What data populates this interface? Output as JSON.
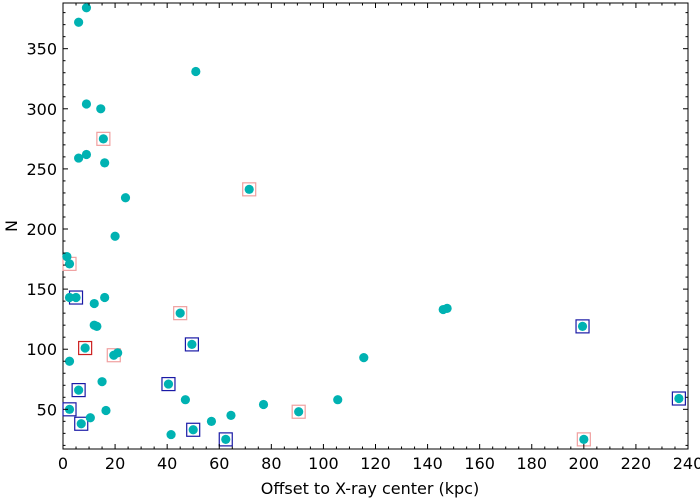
{
  "chart_data": {
    "type": "scatter",
    "title": "",
    "xlabel": "Offset to X-ray center (kpc)",
    "ylabel": "N",
    "xlim": [
      0,
      240
    ],
    "ylim": [
      17,
      388
    ],
    "xticks": [
      0,
      20,
      40,
      60,
      80,
      100,
      120,
      140,
      160,
      180,
      200,
      220,
      240
    ],
    "yticks": [
      50,
      100,
      150,
      200,
      250,
      300,
      350
    ],
    "grid": false,
    "legend": "none",
    "marker_color": "#00b2b2",
    "box_colors": {
      "blue": "#1a1aa6",
      "pink": "#f0a0a0",
      "red": "#cc2020"
    },
    "points": [
      {
        "x": 9,
        "y": 384
      },
      {
        "x": 6,
        "y": 372
      },
      {
        "x": 51,
        "y": 331
      },
      {
        "x": 9,
        "y": 304
      },
      {
        "x": 14.5,
        "y": 300
      },
      {
        "x": 15.5,
        "y": 275,
        "box": "pink"
      },
      {
        "x": 9,
        "y": 262
      },
      {
        "x": 6,
        "y": 259
      },
      {
        "x": 16,
        "y": 255
      },
      {
        "x": 71.5,
        "y": 233,
        "box": "pink"
      },
      {
        "x": 24,
        "y": 226
      },
      {
        "x": 20,
        "y": 194
      },
      {
        "x": 1.5,
        "y": 177
      },
      {
        "x": 2.5,
        "y": 171,
        "box": "pink"
      },
      {
        "x": 2.5,
        "y": 143
      },
      {
        "x": 5,
        "y": 143,
        "box": "blue"
      },
      {
        "x": 16,
        "y": 143
      },
      {
        "x": 12,
        "y": 138
      },
      {
        "x": 45,
        "y": 130,
        "box": "pink"
      },
      {
        "x": 146,
        "y": 133
      },
      {
        "x": 147.5,
        "y": 134
      },
      {
        "x": 12,
        "y": 120
      },
      {
        "x": 13,
        "y": 119
      },
      {
        "x": 199.5,
        "y": 119,
        "box": "blue"
      },
      {
        "x": 49.5,
        "y": 104,
        "box": "blue"
      },
      {
        "x": 8.5,
        "y": 101,
        "box": "red"
      },
      {
        "x": 21,
        "y": 97
      },
      {
        "x": 19.5,
        "y": 95,
        "box": "pink"
      },
      {
        "x": 115.5,
        "y": 93
      },
      {
        "x": 2.5,
        "y": 90
      },
      {
        "x": 15,
        "y": 73
      },
      {
        "x": 40.5,
        "y": 71,
        "box": "blue"
      },
      {
        "x": 6,
        "y": 66,
        "box": "blue"
      },
      {
        "x": 236.5,
        "y": 59,
        "box": "blue"
      },
      {
        "x": 47,
        "y": 58
      },
      {
        "x": 105.5,
        "y": 58
      },
      {
        "x": 77,
        "y": 54
      },
      {
        "x": 2.5,
        "y": 50,
        "box": "blue"
      },
      {
        "x": 16.5,
        "y": 49
      },
      {
        "x": 90.5,
        "y": 48,
        "box": "pink"
      },
      {
        "x": 10.5,
        "y": 43
      },
      {
        "x": 64.5,
        "y": 45
      },
      {
        "x": 57,
        "y": 40
      },
      {
        "x": 7,
        "y": 38,
        "box": "blue"
      },
      {
        "x": 50,
        "y": 33,
        "box": "blue"
      },
      {
        "x": 41.5,
        "y": 29
      },
      {
        "x": 62.5,
        "y": 25,
        "box": "blue"
      },
      {
        "x": 200,
        "y": 25,
        "box": "pink"
      }
    ]
  }
}
